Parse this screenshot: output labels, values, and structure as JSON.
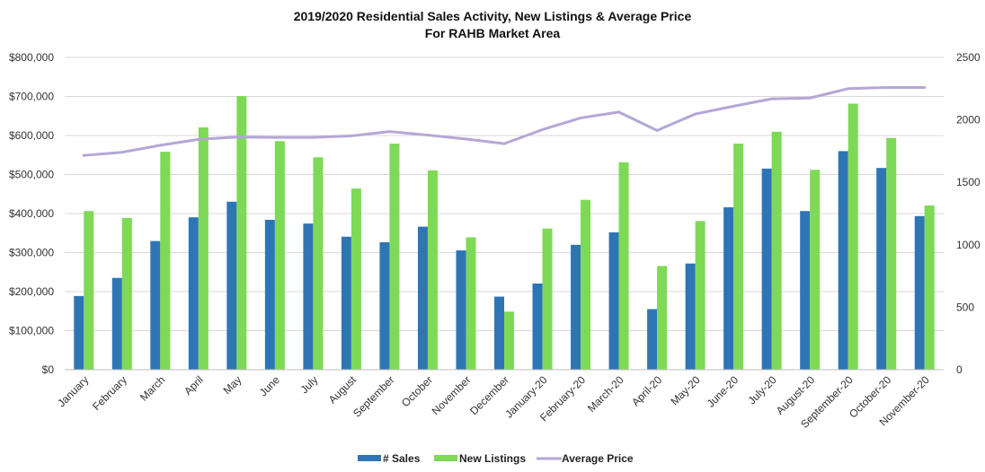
{
  "chart_data": {
    "type": "bar",
    "title": "2019/2020 Residential Sales Activity, New Listings & Average Price",
    "subtitle": "For RAHB Market Area",
    "categories": [
      "January",
      "February",
      "March",
      "April",
      "May",
      "June",
      "July",
      "August",
      "September",
      "October",
      "November",
      "December",
      "January-20",
      "February-20",
      "March-20",
      "April-20",
      "May-20",
      "June-20",
      "July-20",
      "August-20",
      "September-20",
      "October-20",
      "November-20"
    ],
    "series": [
      {
        "name": "# Sales",
        "type": "bar",
        "axis": "right",
        "color": "#2e75b6",
        "values": [
          590,
          735,
          1030,
          1220,
          1345,
          1200,
          1170,
          1065,
          1020,
          1145,
          955,
          585,
          690,
          1000,
          1100,
          485,
          850,
          1300,
          1610,
          1270,
          1750,
          1615,
          1230
        ]
      },
      {
        "name": "New Listings",
        "type": "bar",
        "axis": "right",
        "color": "#7ed957",
        "values": [
          1270,
          1215,
          1745,
          1940,
          2190,
          1830,
          1700,
          1450,
          1810,
          1595,
          1060,
          465,
          1130,
          1360,
          1660,
          830,
          1190,
          1810,
          1905,
          1600,
          2130,
          1855,
          1315
        ]
      },
      {
        "name": "Average Price",
        "type": "line",
        "axis": "left",
        "color": "#b4a7d6",
        "values": [
          549000,
          557000,
          575000,
          590000,
          596000,
          595000,
          595000,
          599000,
          610000,
          601000,
          591000,
          579000,
          615000,
          645000,
          660000,
          613000,
          655000,
          675000,
          694000,
          696000,
          720000,
          723000,
          723000
        ]
      }
    ],
    "y_left": {
      "ylim": [
        0,
        800000
      ],
      "ticks": [
        "$0",
        "$100,000",
        "$200,000",
        "$300,000",
        "$400,000",
        "$500,000",
        "$600,000",
        "$700,000",
        "$800,000"
      ]
    },
    "y_right": {
      "ylim": [
        0,
        2500
      ],
      "ticks": [
        "0",
        "500",
        "1000",
        "1500",
        "2000",
        "2500"
      ]
    },
    "grid": true,
    "legend": "bottom"
  }
}
